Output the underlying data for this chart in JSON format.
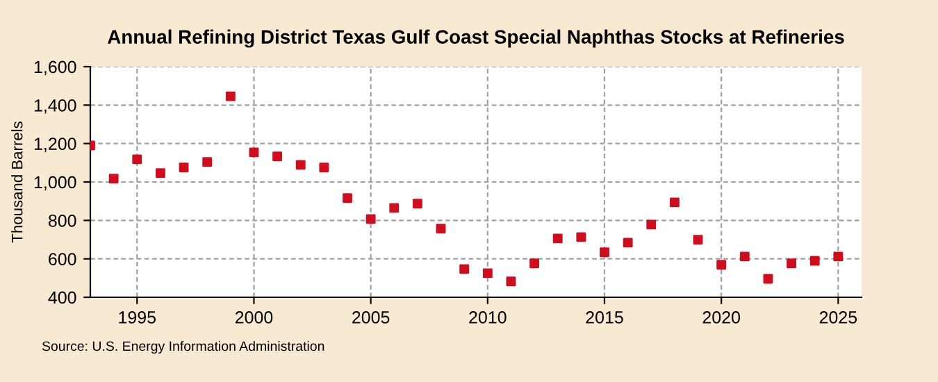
{
  "chart_data": {
    "type": "scatter",
    "title": "Annual Refining District Texas Gulf Coast Special Naphthas Stocks at Refineries",
    "ylabel": "Thousand Barrels",
    "x": [
      1993,
      1994,
      1995,
      1996,
      1997,
      1998,
      1999,
      2000,
      2001,
      2002,
      2003,
      2004,
      2005,
      2006,
      2007,
      2008,
      2009,
      2010,
      2011,
      2012,
      2013,
      2014,
      2015,
      2016,
      2017,
      2018,
      2019,
      2020,
      2021,
      2022,
      2023,
      2024,
      2025
    ],
    "series": [
      {
        "color": "#cc0f1f",
        "values": [
          1190,
          1017,
          1118,
          1046,
          1075,
          1104,
          1446,
          1154,
          1133,
          1089,
          1075,
          916,
          807,
          865,
          887,
          757,
          547,
          525,
          482,
          576,
          706,
          713,
          634,
          684,
          778,
          894,
          699,
          569,
          612,
          496,
          576,
          590,
          612
        ]
      }
    ],
    "xlim": [
      1993,
      2026
    ],
    "xticks": [
      1995,
      2000,
      2005,
      2010,
      2015,
      2020,
      2025
    ],
    "ylim": [
      400,
      1600
    ],
    "yticks": [
      {
        "value": 400,
        "label": "400"
      },
      {
        "value": 600,
        "label": "600"
      },
      {
        "value": 800,
        "label": "800"
      },
      {
        "value": 1000,
        "label": "1,000"
      },
      {
        "value": 1200,
        "label": "1,200"
      },
      {
        "value": 1400,
        "label": "1,400"
      },
      {
        "value": 1600,
        "label": "1,600"
      }
    ],
    "grid": true,
    "marker": "square",
    "legend": false,
    "annotations": [
      "Source: U.S. Energy Information Administration"
    ]
  }
}
